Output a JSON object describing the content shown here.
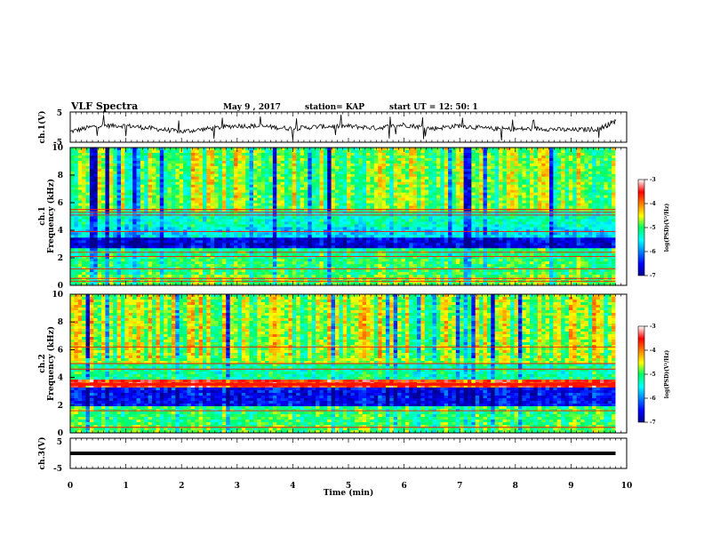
{
  "header": {
    "title": "VLF Spectra",
    "date": "May 9 , 2017",
    "station": "station= KAP",
    "start": "start UT = 12: 50: 1"
  },
  "chart_data": [
    {
      "type": "line",
      "name": "ch1-waveform",
      "ylabel": "ch.1(V)",
      "ylim": [
        -5,
        5
      ],
      "yticks": [
        "5",
        "-5"
      ],
      "xlim": [
        0,
        10
      ],
      "x": [
        0,
        0.5,
        1,
        1.5,
        2,
        2.5,
        3,
        3.5,
        4,
        4.5,
        5,
        5.5,
        6,
        6.5,
        7,
        7.5,
        8,
        8.5,
        9,
        9.5,
        9.8
      ],
      "y": [
        -1.5,
        0.5,
        0.5,
        -0.5,
        -1.5,
        -0.5,
        0.5,
        0.2,
        -0.5,
        0.2,
        0.3,
        -0.3,
        0.8,
        -0.5,
        0.5,
        -0.5,
        -0.7,
        -0.5,
        -1.0,
        -0.6,
        2.0
      ]
    },
    {
      "type": "heatmap",
      "name": "ch1-spectrogram",
      "ylabel": "ch.1",
      "ylabel2": "Frequency (kHz)",
      "ylim": [
        0,
        10
      ],
      "yticks": [
        "0",
        "2",
        "4",
        "6",
        "8",
        "10"
      ],
      "xlim": [
        0,
        9.8
      ],
      "bands": [
        {
          "f0": 0.0,
          "f1": 0.8,
          "level": -4.8
        },
        {
          "f0": 0.8,
          "f1": 2.0,
          "level": -5.0
        },
        {
          "f0": 2.0,
          "f1": 2.6,
          "level": -5.1
        },
        {
          "f0": 2.6,
          "f1": 3.4,
          "level": -6.6
        },
        {
          "f0": 3.4,
          "f1": 4.2,
          "level": -5.6
        },
        {
          "f0": 4.2,
          "f1": 5.3,
          "level": -5.3
        },
        {
          "f0": 5.3,
          "f1": 10.0,
          "level": -4.8
        }
      ],
      "lines_khz": [
        0.3,
        0.5,
        1.2,
        2.1,
        2.4,
        3.9,
        5.1,
        5.3,
        5.5
      ]
    },
    {
      "type": "heatmap",
      "name": "ch2-spectrogram",
      "ylabel": "ch.2",
      "ylabel2": "Frequency (kHz)",
      "ylim": [
        0,
        10
      ],
      "yticks": [
        "0",
        "2",
        "4",
        "6",
        "8",
        "10"
      ],
      "xlim": [
        0,
        9.8
      ],
      "bands": [
        {
          "f0": 0.0,
          "f1": 0.6,
          "level": -4.9
        },
        {
          "f0": 0.6,
          "f1": 2.0,
          "level": -5.0
        },
        {
          "f0": 2.0,
          "f1": 3.3,
          "level": -6.5
        },
        {
          "f0": 3.3,
          "f1": 3.8,
          "level": -3.6
        },
        {
          "f0": 3.8,
          "f1": 5.0,
          "level": -5.2
        },
        {
          "f0": 5.0,
          "f1": 10.0,
          "level": -4.7
        }
      ],
      "lines_khz": [
        0.4,
        1.6,
        3.5,
        4.6,
        5.0,
        6.2
      ]
    },
    {
      "type": "line",
      "name": "ch3-waveform",
      "ylabel": "ch.3(V)",
      "ylim": [
        -5,
        5
      ],
      "yticks": [
        "5",
        "-5"
      ],
      "xlim": [
        0,
        10
      ],
      "x": [
        0,
        9.8
      ],
      "y": [
        0,
        0
      ],
      "xlabel": "Time (min)",
      "xticks": [
        "0",
        "1",
        "2",
        "3",
        "4",
        "5",
        "6",
        "7",
        "8",
        "9",
        "10"
      ]
    }
  ],
  "colorbars": [
    {
      "label": "log(PSD)(V²/Hz)",
      "ticks": [
        "-3",
        "-4",
        "-5",
        "-6",
        "-7"
      ],
      "range": [
        -7,
        -3
      ]
    },
    {
      "label": "log(PSD)(V²/Hz)",
      "ticks": [
        "-3",
        "-4",
        "-5",
        "-6",
        "-7"
      ],
      "range": [
        -7,
        -3
      ]
    }
  ]
}
